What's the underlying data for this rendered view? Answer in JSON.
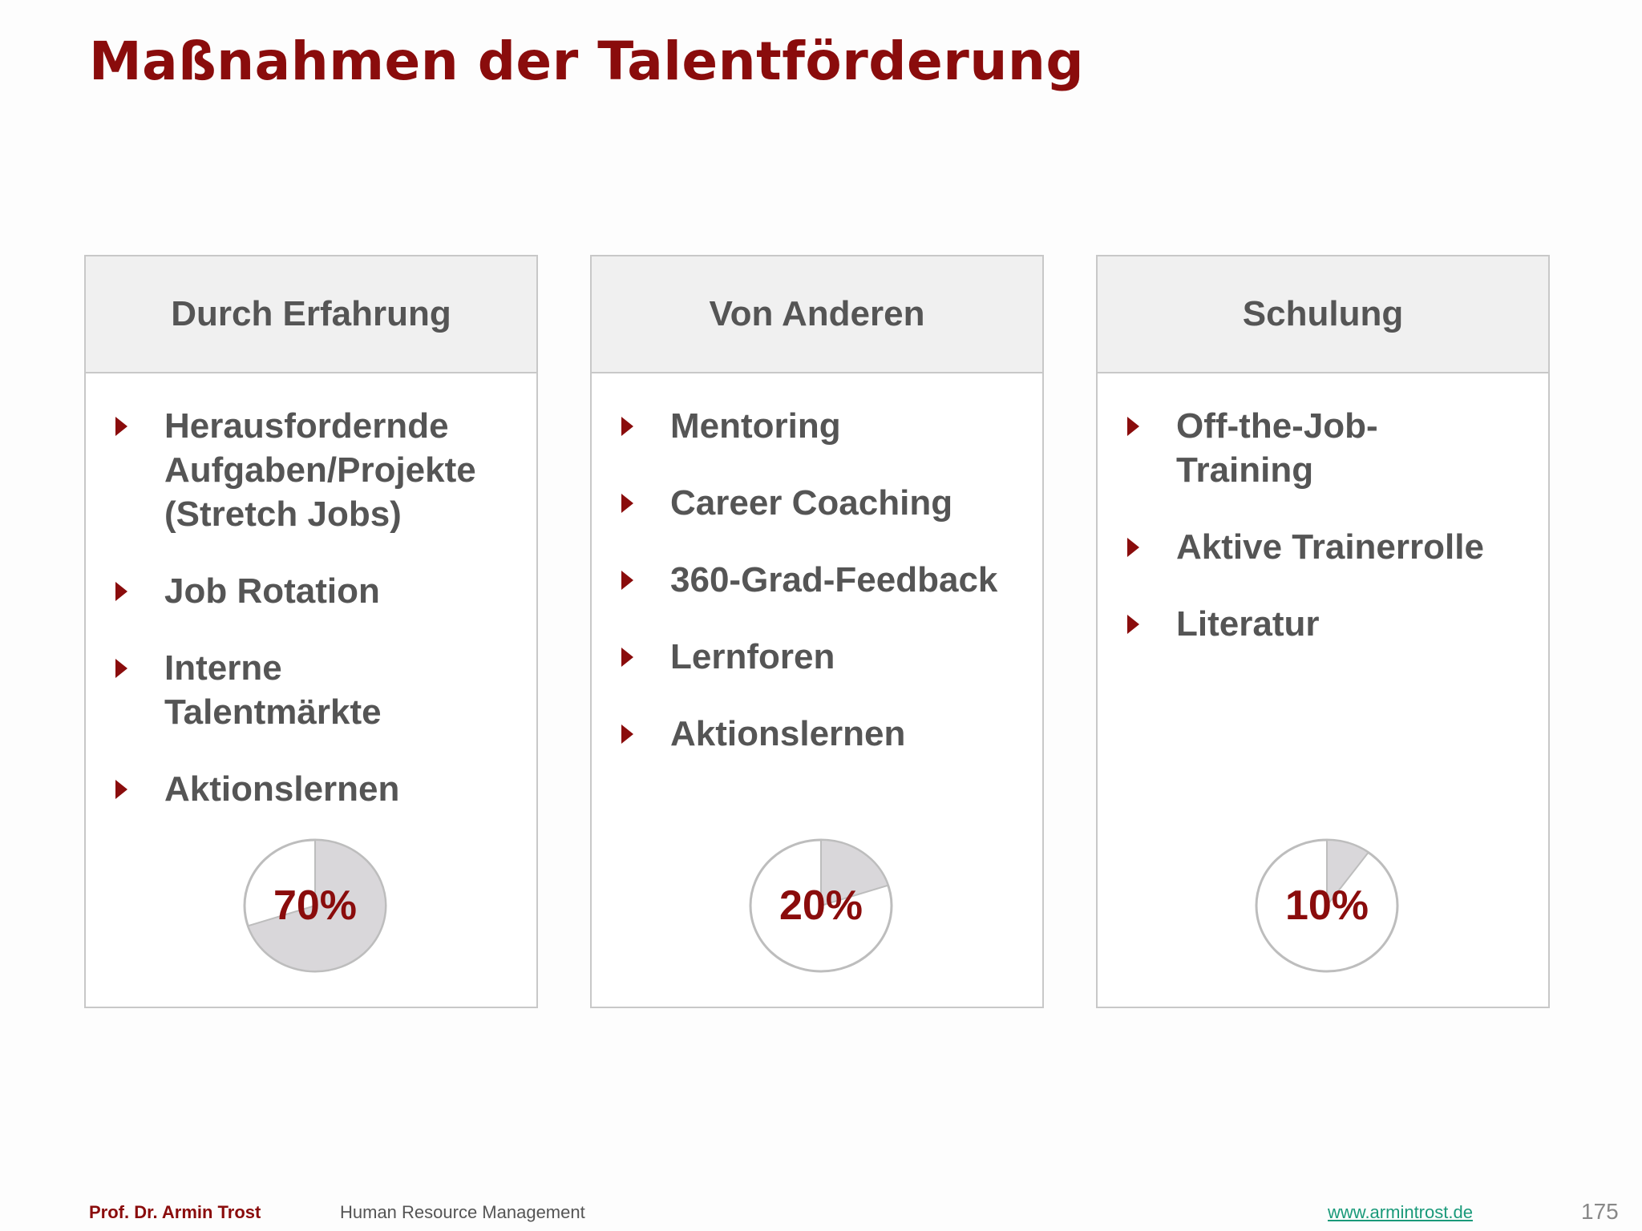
{
  "title": "Maßnahmen der Talentförderung",
  "columns": [
    {
      "header": "Durch Erfahrung",
      "items": [
        {
          "lines": [
            "Herausfordernde",
            "Aufgaben/Projekte",
            "(Stretch Jobs)"
          ]
        },
        {
          "lines": [
            "Job Rotation"
          ]
        },
        {
          "lines": [
            "Interne",
            "Talentmärkte"
          ]
        },
        {
          "lines": [
            "Aktionslernen"
          ]
        }
      ],
      "pie_label": "70%",
      "pie_value": 0.7
    },
    {
      "header": "Von Anderen",
      "items": [
        {
          "lines": [
            "Mentoring"
          ]
        },
        {
          "lines": [
            "Career Coaching"
          ]
        },
        {
          "lines": [
            "360-Grad-Feedback"
          ]
        },
        {
          "lines": [
            "Lernforen"
          ]
        },
        {
          "lines": [
            "Aktionslernen"
          ]
        }
      ],
      "pie_label": "20%",
      "pie_value": 0.2
    },
    {
      "header": "Schulung",
      "items": [
        {
          "lines": [
            "Off-the-Job-",
            "Training"
          ]
        },
        {
          "lines": [
            "Aktive Trainerrolle"
          ]
        },
        {
          "lines": [
            "Literatur"
          ]
        }
      ],
      "pie_label": "10%",
      "pie_value": 0.1
    }
  ],
  "footer": {
    "author": "Prof. Dr. Armin Trost",
    "subject": "Human Resource Management",
    "website": "www.armintrost.de",
    "page_number": "175"
  },
  "colors": {
    "accent": "#8a0c0c",
    "text": "#555555",
    "header_bg": "#f0f0f0",
    "border": "#c8c8c8",
    "pie_fill": "#d9d7da",
    "link": "#1a9a7a"
  }
}
